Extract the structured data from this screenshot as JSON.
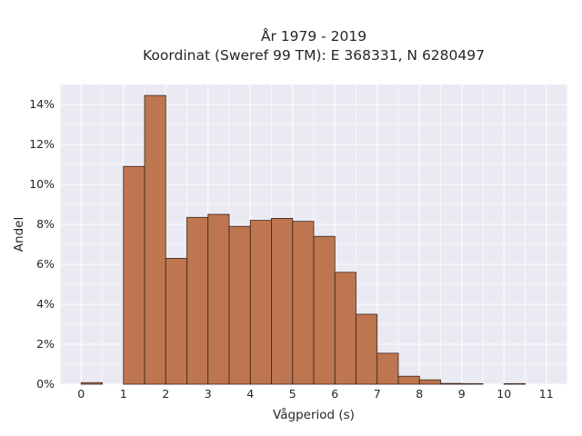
{
  "chart_data": {
    "type": "bar",
    "title_lines": [
      "År 1979 - 2019",
      "Koordinat (Sweref 99 TM): E 368331, N 6280497"
    ],
    "xlabel": "Vågperiod (s)",
    "ylabel": "Andel",
    "xlim": [
      -0.5,
      11.5
    ],
    "ylim": [
      0,
      15
    ],
    "x_ticks": [
      0,
      1,
      2,
      3,
      4,
      5,
      6,
      7,
      8,
      9,
      10,
      11
    ],
    "y_ticks": [
      0,
      2,
      4,
      6,
      8,
      10,
      12,
      14
    ],
    "y_tick_labels": [
      "0%",
      "2%",
      "4%",
      "6%",
      "8%",
      "10%",
      "12%",
      "14%"
    ],
    "grid": true,
    "bin_width": 0.5,
    "bins": [
      {
        "start": 0.0,
        "value": 0.08
      },
      {
        "start": 1.0,
        "value": 10.9
      },
      {
        "start": 1.5,
        "value": 14.45
      },
      {
        "start": 2.0,
        "value": 6.3
      },
      {
        "start": 2.5,
        "value": 8.35
      },
      {
        "start": 3.0,
        "value": 8.5
      },
      {
        "start": 3.5,
        "value": 7.9
      },
      {
        "start": 4.0,
        "value": 8.2
      },
      {
        "start": 4.5,
        "value": 8.3
      },
      {
        "start": 5.0,
        "value": 8.15
      },
      {
        "start": 5.5,
        "value": 7.4
      },
      {
        "start": 6.0,
        "value": 5.6
      },
      {
        "start": 6.5,
        "value": 3.5
      },
      {
        "start": 7.0,
        "value": 1.55
      },
      {
        "start": 7.5,
        "value": 0.4
      },
      {
        "start": 8.0,
        "value": 0.22
      },
      {
        "start": 8.5,
        "value": 0.04
      },
      {
        "start": 9.0,
        "value": 0.03
      },
      {
        "start": 10.0,
        "value": 0.03
      }
    ],
    "bar_color": "#b86b42",
    "bar_edge_color": "#3b2417",
    "plot_background": "#eaeaf2"
  }
}
